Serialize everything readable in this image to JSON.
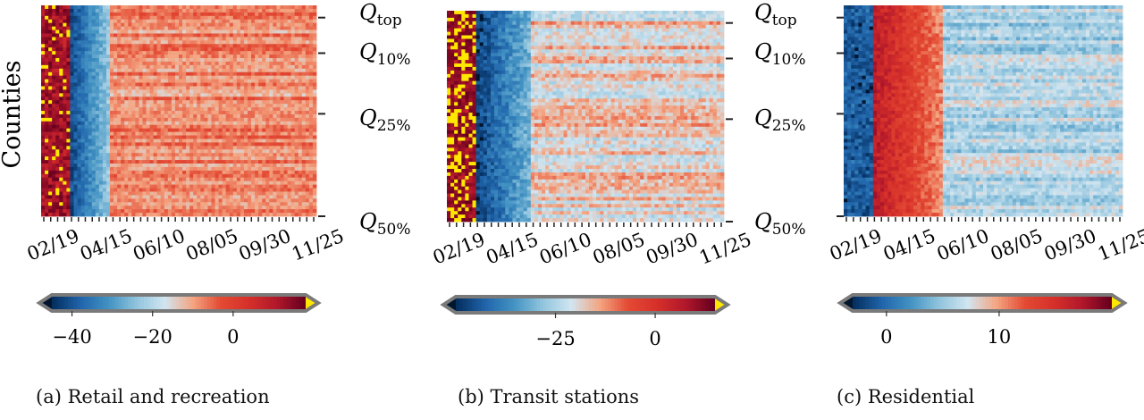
{
  "y_axis_label": "Counties",
  "chart_data": [
    {
      "type": "heatmap",
      "caption": "(a) Retail and recreation",
      "xlabel": "",
      "ylabel": "Counties",
      "x_tick_labels": [
        "02/19",
        "04/15",
        "06/10",
        "08/05",
        "09/30",
        "11/25"
      ],
      "quantile_marks": [
        {
          "label": "Q_top",
          "sub": "top"
        },
        {
          "label": "Q_10%",
          "sub": "10%"
        },
        {
          "label": "Q_25%",
          "sub": "25%"
        },
        {
          "label": "Q_50%",
          "sub": "50%"
        }
      ],
      "colorbar": {
        "min": -45,
        "max": 18,
        "ticks": [
          -40,
          -20,
          0
        ],
        "tick_labels": [
          "−40",
          "−20",
          "0"
        ],
        "extend": "both"
      },
      "pattern": {
        "baseline_weeks": 4,
        "drop_start": 4,
        "drop_end": 10,
        "drop_value": -42,
        "recovery_value": -8,
        "noise": 7
      }
    },
    {
      "type": "heatmap",
      "caption": "(b) Transit stations",
      "xlabel": "",
      "ylabel": "",
      "x_tick_labels": [
        "02/19",
        "04/15",
        "06/10",
        "08/05",
        "09/30",
        "11/25"
      ],
      "quantile_marks": [
        {
          "label": "Q_top",
          "sub": "top"
        },
        {
          "label": "Q_10%",
          "sub": "10%"
        },
        {
          "label": "Q_25%",
          "sub": "25%"
        },
        {
          "label": "Q_50%",
          "sub": "50%"
        }
      ],
      "colorbar": {
        "min": -50,
        "max": 15,
        "ticks": [
          -25,
          0
        ],
        "tick_labels": [
          "−25",
          "0"
        ],
        "extend": "both"
      },
      "pattern": {
        "baseline_weeks": 4,
        "drop_start": 4,
        "drop_end": 12,
        "drop_value": -48,
        "recovery_value": -18,
        "noise": 9
      }
    },
    {
      "type": "heatmap",
      "caption": "(c) Residential",
      "xlabel": "",
      "ylabel": "",
      "x_tick_labels": [
        "02/19",
        "04/15",
        "06/10",
        "08/05",
        "09/30",
        "11/25"
      ],
      "quantile_marks": [
        {
          "label": "Q_top",
          "sub": "top"
        },
        {
          "label": "Q_10%",
          "sub": "10%"
        },
        {
          "label": "Q_25%",
          "sub": "25%"
        },
        {
          "label": "Q_50%",
          "sub": "50%"
        }
      ],
      "colorbar": {
        "min": -3,
        "max": 20,
        "ticks": [
          0,
          10
        ],
        "tick_labels": [
          "0",
          "10"
        ],
        "extend": "both"
      },
      "pattern": {
        "baseline_weeks": 4,
        "drop_start": 4,
        "drop_end": 14,
        "drop_value": 17,
        "recovery_value": 6,
        "noise": 3,
        "inverted": true
      }
    }
  ],
  "colors": {
    "cmap": [
      "#053061",
      "#2166ac",
      "#4393c3",
      "#92c5de",
      "#d1e5f0",
      "#f4a582",
      "#e34a33",
      "#d6302a",
      "#b2182b",
      "#67001f"
    ],
    "over": "#ffe700",
    "under": "#00152e",
    "frame": "#7a7a7a"
  }
}
